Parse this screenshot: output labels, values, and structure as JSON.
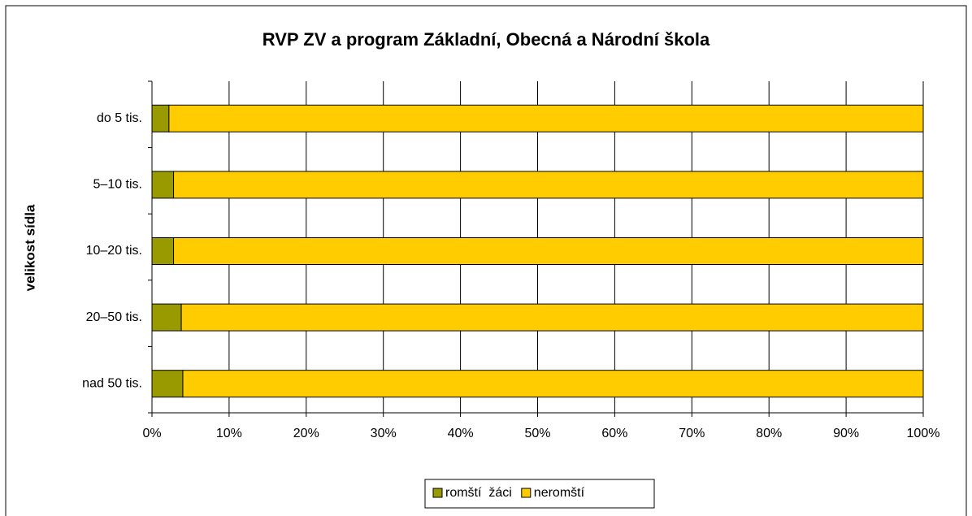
{
  "chart_data": {
    "type": "stacked_barh",
    "title": "RVP ZV a program Základní, Obecná a Národní škola",
    "y_label": "velikost sídla",
    "categories": [
      "do 5 tis.",
      "5–10 tis.",
      "10–20 tis.",
      "20–50 tis.",
      "nad 50 tis."
    ],
    "series": [
      {
        "name": "romští  žáci",
        "color": "#999900",
        "values": [
          2.2,
          2.8,
          2.8,
          3.8,
          4.0
        ]
      },
      {
        "name": "neromští",
        "color": "#ffcc00",
        "values": [
          97.8,
          97.2,
          97.2,
          96.2,
          96.0
        ]
      }
    ],
    "xlim": [
      0,
      100
    ],
    "xticks": [
      {
        "value": 0,
        "label": "0%"
      },
      {
        "value": 10,
        "label": "10%"
      },
      {
        "value": 20,
        "label": "20%"
      },
      {
        "value": 30,
        "label": "30%"
      },
      {
        "value": 40,
        "label": "40%"
      },
      {
        "value": 50,
        "label": "50%"
      },
      {
        "value": 60,
        "label": "60%"
      },
      {
        "value": 70,
        "label": "70%"
      },
      {
        "value": 80,
        "label": "80%"
      },
      {
        "value": 90,
        "label": "90%"
      },
      {
        "value": 100,
        "label": "100%"
      }
    ],
    "grid": true,
    "legend": "bottom"
  }
}
